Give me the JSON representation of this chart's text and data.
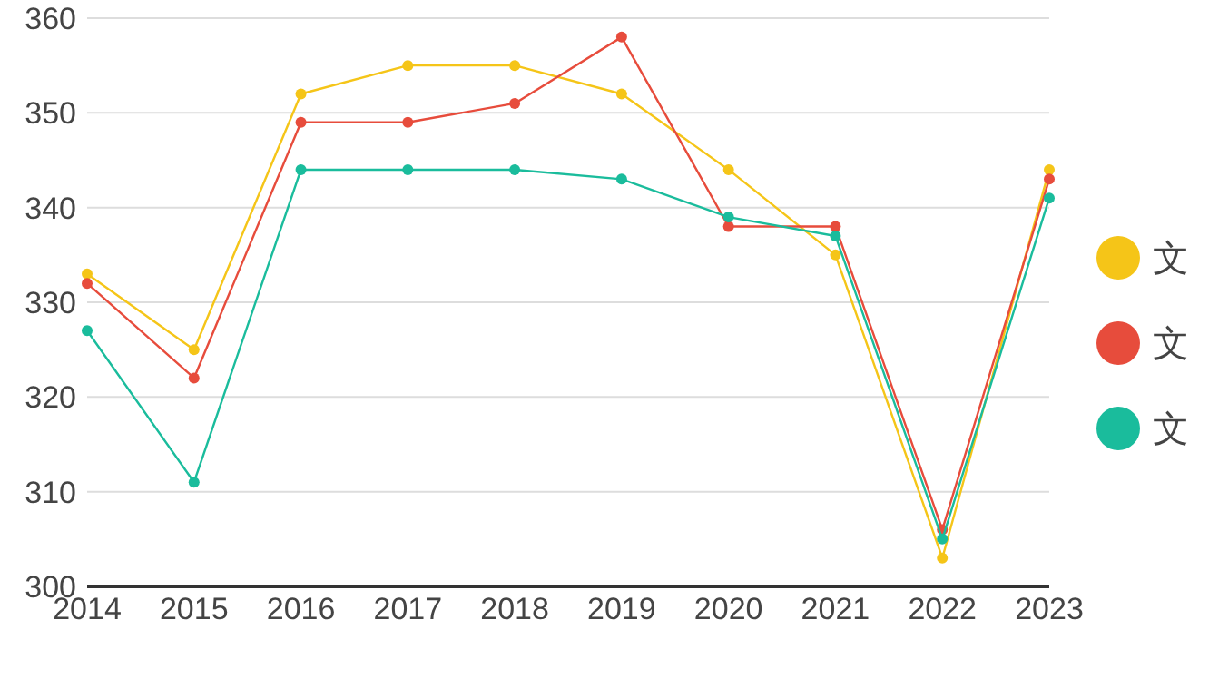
{
  "chart_data": {
    "type": "line",
    "categories": [
      "2014",
      "2015",
      "2016",
      "2017",
      "2018",
      "2019",
      "2020",
      "2021",
      "2022",
      "2023"
    ],
    "series": [
      {
        "name": "文",
        "color": "#f5c518",
        "values": [
          333,
          325,
          352,
          355,
          355,
          352,
          344,
          335,
          303,
          344
        ]
      },
      {
        "name": "文",
        "color": "#e74c3c",
        "values": [
          332,
          322,
          349,
          349,
          351,
          358,
          338,
          338,
          306,
          343
        ]
      },
      {
        "name": "文",
        "color": "#1abc9c",
        "values": [
          327,
          311,
          344,
          344,
          344,
          343,
          339,
          337,
          305,
          341
        ]
      }
    ],
    "ylim": [
      300,
      360
    ],
    "yticks": [
      300,
      310,
      320,
      330,
      340,
      350,
      360
    ],
    "grid": "y",
    "legend": "right",
    "marker": "circle",
    "line_style": "solid"
  }
}
